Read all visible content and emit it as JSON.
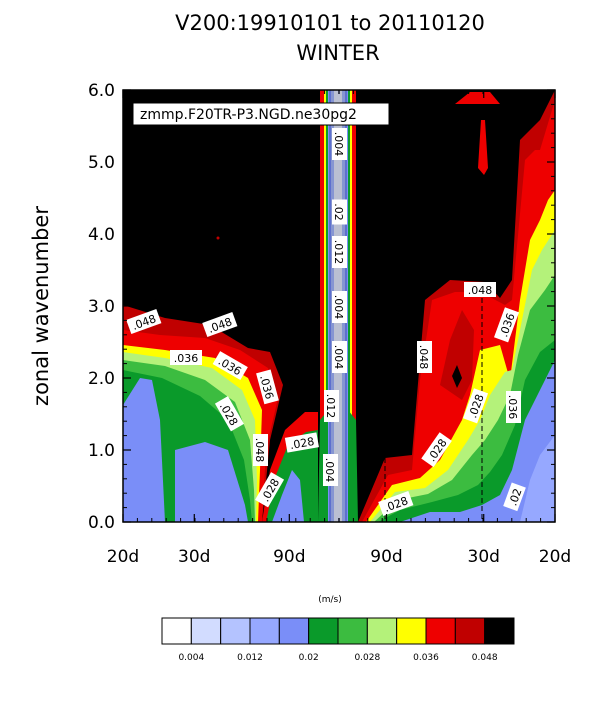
{
  "chart_data": {
    "type": "heatmap",
    "title_line1": "V200:19910101 to 20110120",
    "title_line2": "WINTER",
    "inset_label": "zmmp.F20TR-P3.NGD.ne30pg2",
    "ylabel": "zonal wavenumber",
    "ylim": [
      0,
      6
    ],
    "y_ticks": [
      "0.0",
      "1.0",
      "2.0",
      "3.0",
      "4.0",
      "5.0",
      "6.0"
    ],
    "x_ticks": [
      "20d",
      "30d",
      "90d",
      "90d",
      "30d",
      "20d"
    ],
    "units": "(m/s)",
    "colorbar": {
      "colors": [
        "#ffffff",
        "#d2dcff",
        "#b4c3ff",
        "#96a8ff",
        "#7a8ef8",
        "#0a9a2a",
        "#3cbc40",
        "#b4f27a",
        "#ffff00",
        "#ee0000",
        "#c00000",
        "#000000"
      ],
      "tick_labels": [
        "0.004",
        "0.012",
        "0.02",
        "0.028",
        "0.036",
        "0.048"
      ]
    },
    "contour_labels": [
      ".048",
      ".048",
      ".036",
      ".036",
      ".036",
      ".028",
      ".048",
      ".028",
      ".028",
      ".004",
      ".02",
      ".012",
      ".004",
      ".004",
      ".012",
      ".004",
      ".048",
      ".048",
      ".036",
      ".028",
      ".028",
      ".036",
      ".028",
      ".02"
    ]
  }
}
